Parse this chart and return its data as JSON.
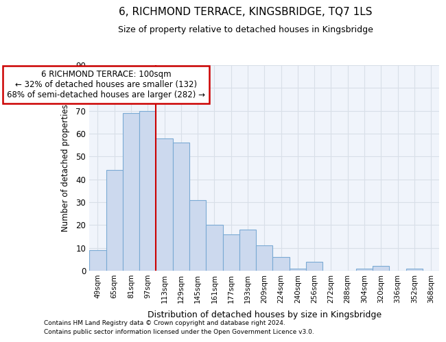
{
  "title": "6, RICHMOND TERRACE, KINGSBRIDGE, TQ7 1LS",
  "subtitle": "Size of property relative to detached houses in Kingsbridge",
  "xlabel": "Distribution of detached houses by size in Kingsbridge",
  "ylabel": "Number of detached properties",
  "bar_color": "#ccd9ee",
  "bar_edge_color": "#7aaad4",
  "categories": [
    "49sqm",
    "65sqm",
    "81sqm",
    "97sqm",
    "113sqm",
    "129sqm",
    "145sqm",
    "161sqm",
    "177sqm",
    "193sqm",
    "209sqm",
    "224sqm",
    "240sqm",
    "256sqm",
    "272sqm",
    "288sqm",
    "304sqm",
    "320sqm",
    "336sqm",
    "352sqm",
    "368sqm"
  ],
  "values": [
    9,
    44,
    69,
    70,
    58,
    56,
    31,
    20,
    16,
    18,
    11,
    6,
    1,
    4,
    0,
    0,
    1,
    2,
    0,
    1,
    0
  ],
  "ylim": [
    0,
    90
  ],
  "yticks": [
    0,
    10,
    20,
    30,
    40,
    50,
    60,
    70,
    80,
    90
  ],
  "red_line_x": 3.5,
  "annotation_title": "6 RICHMOND TERRACE: 100sqm",
  "annotation_line1": "← 32% of detached houses are smaller (132)",
  "annotation_line2": "68% of semi-detached houses are larger (282) →",
  "annotation_box_color": "#ffffff",
  "annotation_box_edge_color": "#cc0000",
  "red_line_color": "#cc0000",
  "footnote1": "Contains HM Land Registry data © Crown copyright and database right 2024.",
  "footnote2": "Contains public sector information licensed under the Open Government Licence v3.0.",
  "background_color": "#ffffff",
  "plot_bg_color": "#f0f4fb",
  "grid_color": "#d8dfe8"
}
